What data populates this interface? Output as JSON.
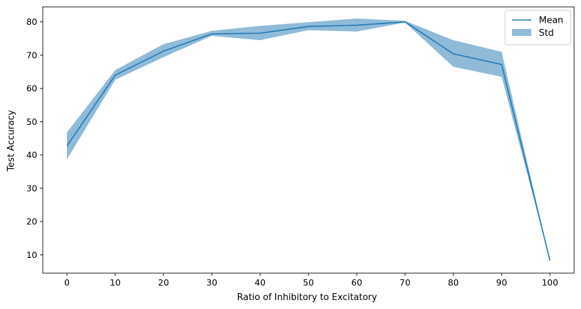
{
  "chart_data": {
    "type": "line",
    "xlabel": "Ratio of Inhibitory to Excitatory",
    "ylabel": "Test Accuracy",
    "x": [
      0,
      10,
      20,
      30,
      40,
      50,
      60,
      70,
      80,
      90,
      100
    ],
    "xticks": [
      "0",
      "10",
      "20",
      "30",
      "40",
      "50",
      "60",
      "70",
      "80",
      "90",
      "100"
    ],
    "yticks": [
      "10",
      "20",
      "30",
      "40",
      "50",
      "60",
      "70",
      "80"
    ],
    "xlim": [
      -5,
      105
    ],
    "ylim": [
      4.5,
      84.5
    ],
    "series": [
      {
        "name": "Mean",
        "color": "#1f77b4",
        "values": [
          42.7,
          64.0,
          71.2,
          76.4,
          76.6,
          78.6,
          79.0,
          80.0,
          70.4,
          67.2,
          8.3
        ]
      }
    ],
    "band": {
      "name": "Std",
      "color": "#1f77b4",
      "opacity": 0.5,
      "lower": [
        38.7,
        62.6,
        69.4,
        75.8,
        74.5,
        77.5,
        77.1,
        79.8,
        66.5,
        63.5,
        8.3
      ],
      "upper": [
        46.8,
        65.5,
        73.3,
        77.3,
        78.8,
        79.9,
        81.0,
        80.3,
        74.5,
        71.0,
        8.3
      ]
    },
    "legend": {
      "position": "top-right",
      "entries": [
        "Mean",
        "Std"
      ]
    },
    "grid": false
  }
}
